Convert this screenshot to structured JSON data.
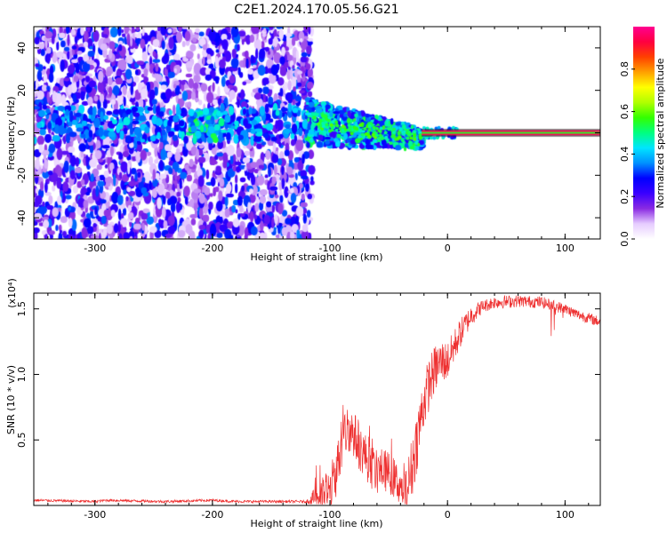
{
  "chart_data": [
    {
      "type": "heatmap",
      "title": "C2E1.2024.170.05.56.G21",
      "xlabel": "Height of straight line (km)",
      "ylabel": "Frequency (Hz)",
      "xlim": [
        -352,
        130
      ],
      "ylim": [
        -50,
        50
      ],
      "xticks": [
        -300,
        -200,
        -100,
        0,
        100
      ],
      "yticks": [
        -40,
        -20,
        0,
        20,
        40
      ],
      "colorbar": {
        "label": "Normalized spectral amplitude",
        "range": [
          0,
          1
        ],
        "ticks": [
          "0.0",
          "0.2",
          "0.4",
          "0.6",
          "0.8"
        ],
        "colors": [
          "#ffffff",
          "#e6ccff",
          "#8a2be2",
          "#3a00ff",
          "#0000ff",
          "#0090ff",
          "#00e5ff",
          "#00ff80",
          "#33ff00",
          "#b0ff00",
          "#ffff00",
          "#ffa000",
          "#ff4000",
          "#ff0040",
          "#ff0090"
        ]
      },
      "regions": [
        {
          "x_range": [
            -352,
            -115
          ],
          "freq_range": [
            -50,
            50
          ],
          "amplitude": "0.0-0.3"
        },
        {
          "x_range": [
            -115,
            -20
          ],
          "freq_center_start": 5,
          "freq_center_end": -3,
          "amplitude": "0.2-0.6"
        },
        {
          "x_range": [
            0,
            130
          ],
          "freq_center": 0,
          "amplitude": "0.9-1.0"
        }
      ],
      "line_peak": {
        "x": [
          -20,
          130
        ],
        "y": [
          0,
          0
        ]
      }
    },
    {
      "type": "line",
      "xlabel": "Height of straight line (km)",
      "ylabel": "SNR (10 * v/v)",
      "y_multiplier": "(x10⁴)",
      "xlim": [
        -352,
        130
      ],
      "ylim": [
        0,
        1.62
      ],
      "xticks": [
        -300,
        -200,
        -100,
        0,
        100
      ],
      "yticks": [
        0.5,
        1.0,
        1.5
      ],
      "ytick_labels": [
        "0.5",
        "1.0",
        "1.5"
      ],
      "color": "#ee3030",
      "envelope": {
        "x": [
          -352,
          -300,
          -290,
          -240,
          -200,
          -180,
          -120,
          -100,
          -95,
          -90,
          -85,
          -80,
          -75,
          -70,
          -65,
          -60,
          -55,
          -50,
          -45,
          -40,
          -35,
          -30,
          -25,
          -20,
          -15,
          -10,
          -5,
          0,
          10,
          20,
          30,
          40,
          60,
          80,
          100,
          110,
          120,
          130
        ],
        "y": [
          0.04,
          0.03,
          0.04,
          0.03,
          0.04,
          0.03,
          0.03,
          0.1,
          0.25,
          0.45,
          0.6,
          0.55,
          0.45,
          0.38,
          0.3,
          0.25,
          0.28,
          0.25,
          0.2,
          0.15,
          0.1,
          0.3,
          0.55,
          0.8,
          0.95,
          1.05,
          1.1,
          1.1,
          1.3,
          1.45,
          1.52,
          1.55,
          1.56,
          1.55,
          1.5,
          1.46,
          1.43,
          1.4
        ]
      },
      "noise": {
        "x": [
          -352,
          -120,
          -100,
          -40,
          -30,
          0,
          30,
          130
        ],
        "amp": [
          0.01,
          0.01,
          0.2,
          0.15,
          0.25,
          0.15,
          0.05,
          0.04
        ]
      }
    }
  ]
}
